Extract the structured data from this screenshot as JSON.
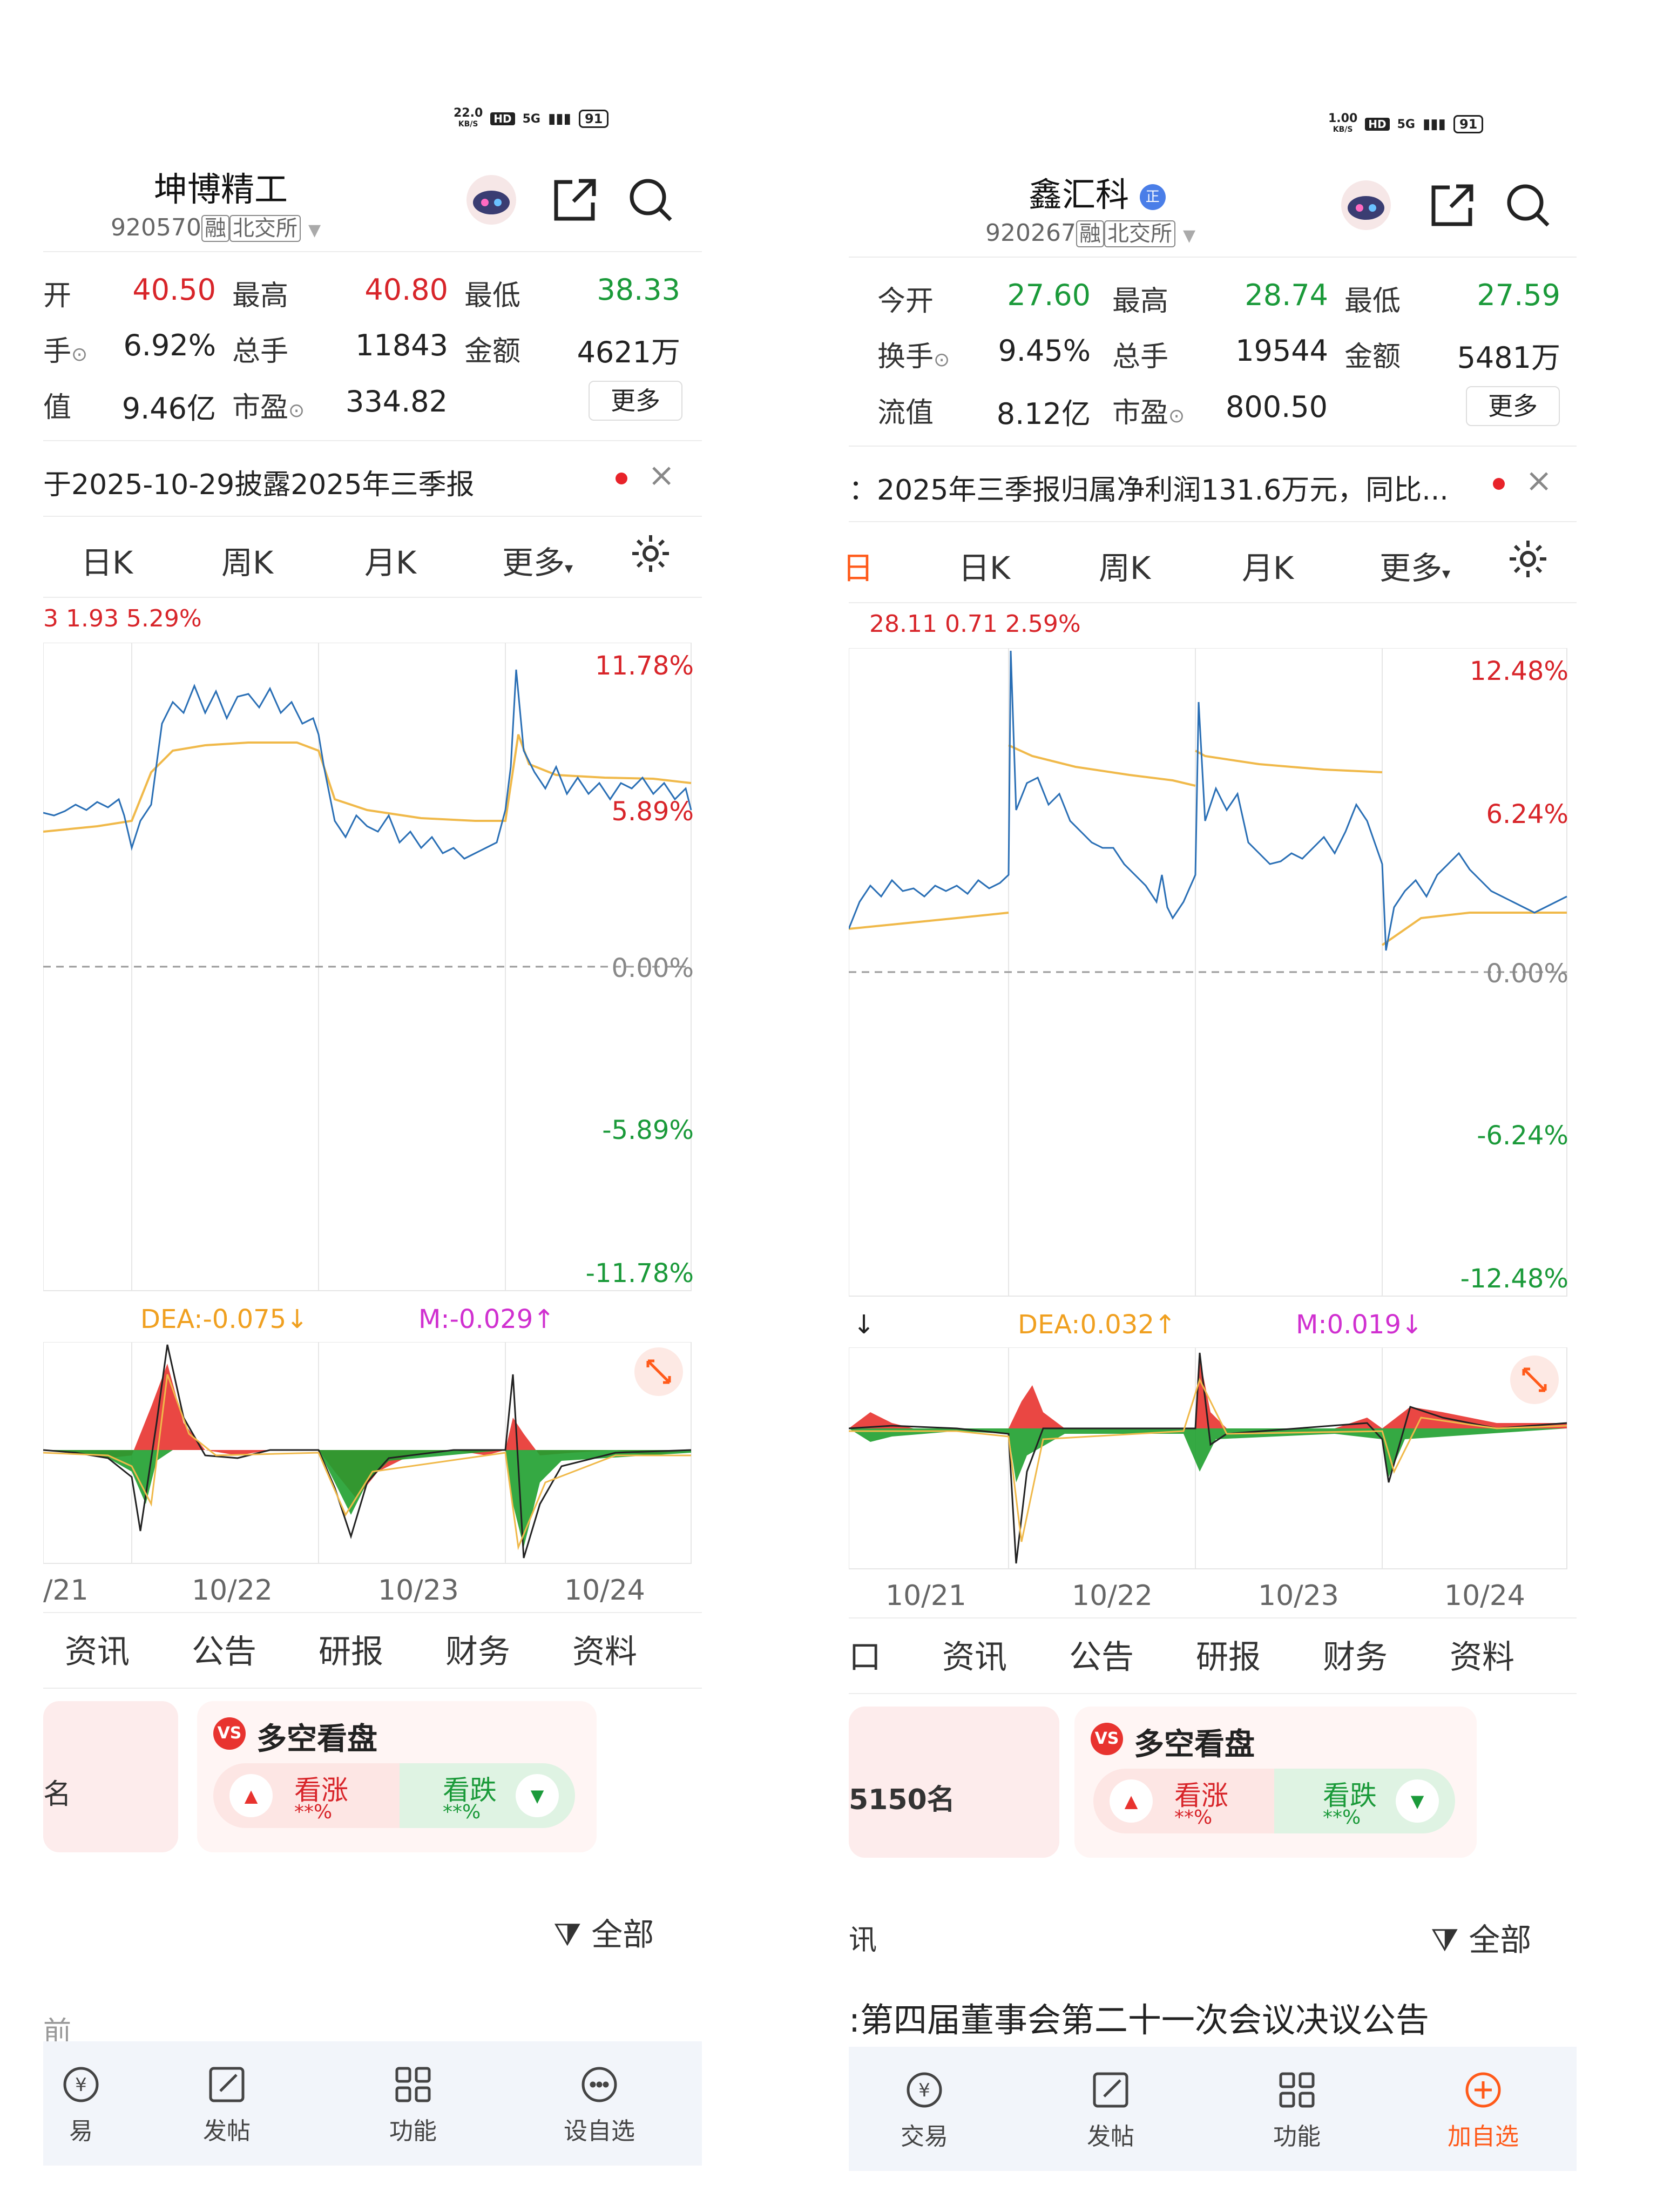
{
  "left": {
    "status": {
      "net_speed": "22.0",
      "net_unit": "KB/S",
      "hd": "HD",
      "signal": "5G",
      "battery": "91"
    },
    "header": {
      "title": "坤博精工",
      "code": "920570",
      "tag_margin": "融",
      "tag_exchange": "北交所"
    },
    "quote": {
      "labels": {
        "open": "开",
        "high": "最高",
        "low": "最低",
        "turnover": "手",
        "volume": "总手",
        "amount": "金额",
        "mktcap": "值",
        "pe": "市盈"
      },
      "open": "40.50",
      "high": "40.80",
      "low": "38.33",
      "turnover": "6.92%",
      "volume": "11843",
      "amount": "4621万",
      "mktcap": "9.46亿",
      "pe": "334.82",
      "more": "更多"
    },
    "notice": "于2025-10-29披露2025年三季报",
    "ktabs": [
      "日K",
      "周K",
      "月K",
      "更多"
    ],
    "summary": "3  1.93  5.29%",
    "chart_pct": [
      "11.78%",
      "5.89%",
      "0.00%",
      "-5.89%",
      "-11.78%"
    ],
    "macd": {
      "dea": "DEA:-0.075",
      "m": "M:-0.029"
    },
    "dates": [
      "/21",
      "10/22",
      "10/23",
      "10/24"
    ],
    "bottom_tabs": [
      "资讯",
      "公告",
      "研报",
      "财务",
      "资料"
    ],
    "side_rank": "名",
    "duokong": {
      "title": "多空看盘",
      "up": "看涨",
      "up_pct": "**%",
      "down": "看跌",
      "down_pct": "**%"
    },
    "filter": "全部",
    "news_fragment": "前",
    "bottom_bar": [
      "易",
      "发帖",
      "功能",
      "设自选"
    ]
  },
  "right": {
    "status": {
      "net_speed": "1.00",
      "net_unit": "KB/S",
      "hd": "HD",
      "signal": "5G",
      "battery": "91"
    },
    "header": {
      "title": "鑫汇科",
      "badge": "正",
      "code": "920267",
      "tag_margin": "融",
      "tag_exchange": "北交所"
    },
    "quote": {
      "labels": {
        "open": "今开",
        "high": "最高",
        "low": "最低",
        "turnover": "换手",
        "volume": "总手",
        "amount": "金额",
        "mktcap": "流值",
        "pe": "市盈"
      },
      "open": "27.60",
      "high": "28.74",
      "low": "27.59",
      "turnover": "9.45%",
      "volume": "19544",
      "amount": "5481万",
      "mktcap": "8.12亿",
      "pe": "800.50",
      "more": "更多"
    },
    "notice": "：2025年三季报归属净利润131.6万元，同比...",
    "ktabs": [
      "日",
      "日K",
      "周K",
      "月K",
      "更多"
    ],
    "summary": "28.11  0.71  2.59%",
    "chart_pct": [
      "12.48%",
      "6.24%",
      "0.00%",
      "-6.24%",
      "-12.48%"
    ],
    "macd": {
      "dea": "DEA:0.032",
      "m": "M:0.019"
    },
    "dates": [
      "10/21",
      "10/22",
      "10/23",
      "10/24"
    ],
    "bottom_tabs": [
      "资讯",
      "公告",
      "研报",
      "财务",
      "资料"
    ],
    "side_rank": "5150名",
    "duokong": {
      "title": "多空看盘",
      "up": "看涨",
      "up_pct": "**%",
      "down": "看跌",
      "down_pct": "**%"
    },
    "filter": "全部",
    "news": "第四届董事会第二十一次会议决议公告",
    "bottom_bar": [
      "交易",
      "发帖",
      "功能",
      "加自选"
    ]
  },
  "colors": {
    "up": "#d8252a",
    "down": "#1b9a3a",
    "price_line": "#2a6fb5",
    "avg_line": "#f0b94a",
    "accent": "#ff5a1a"
  }
}
